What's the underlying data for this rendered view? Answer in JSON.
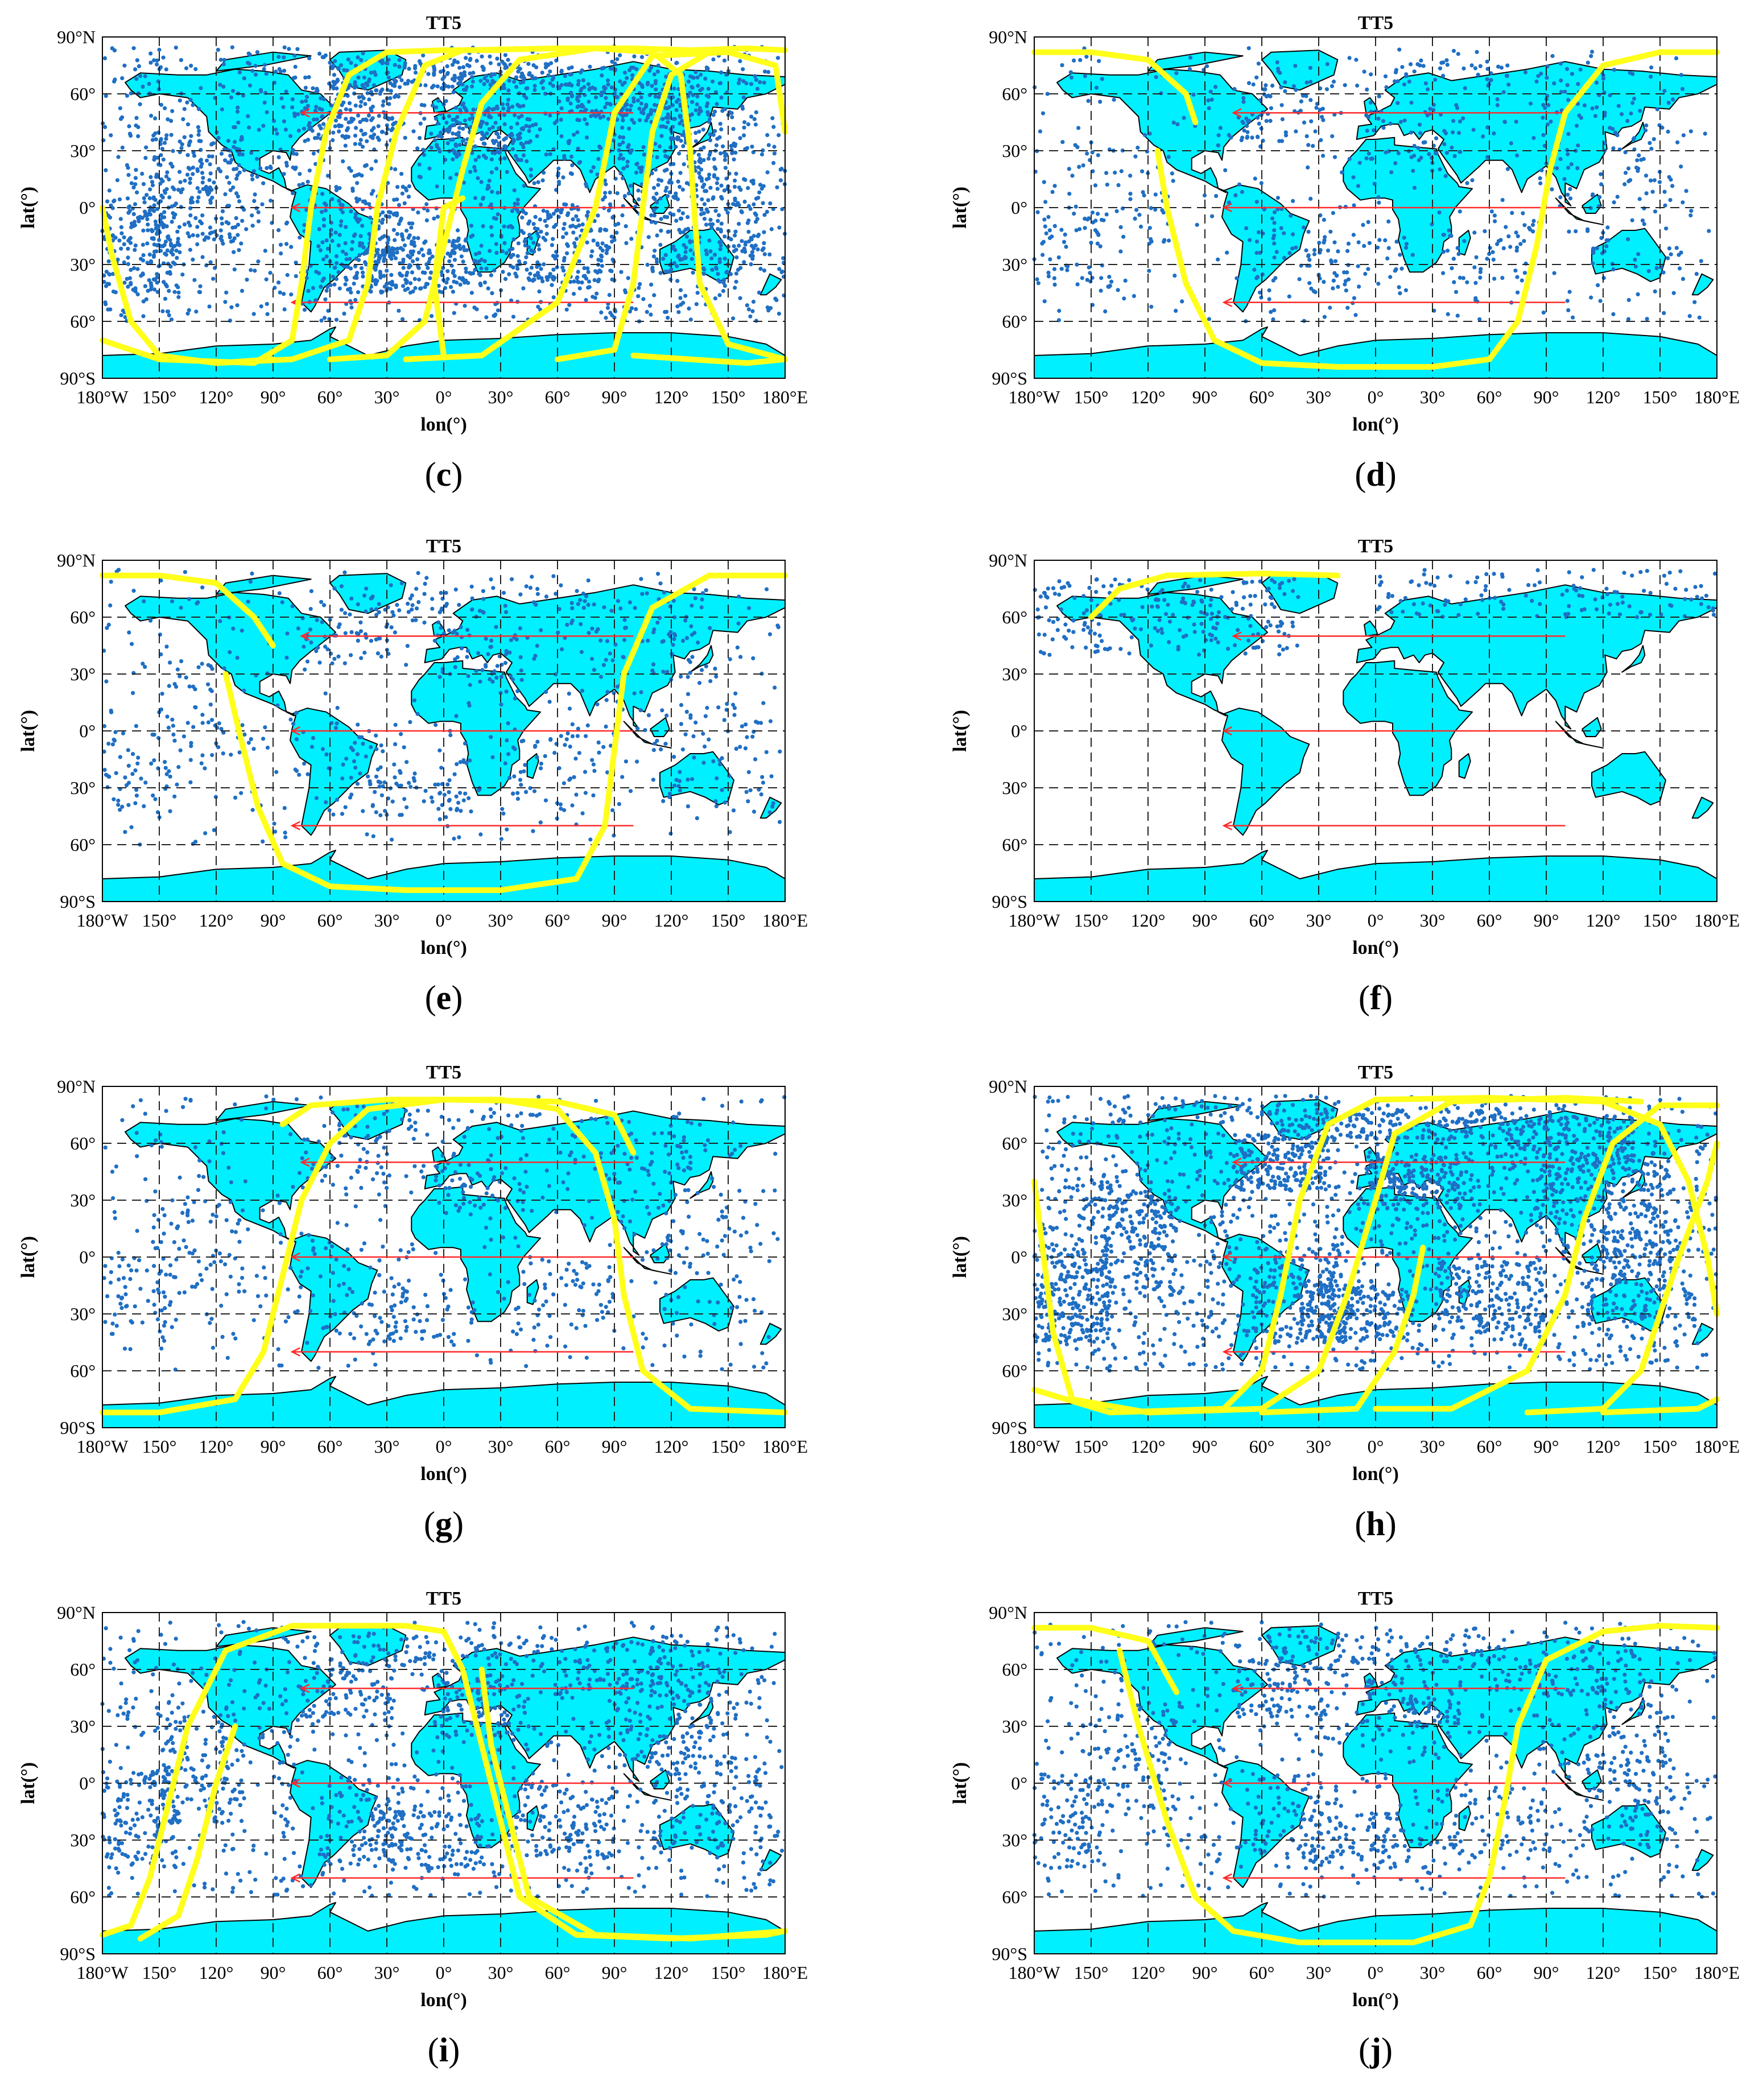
{
  "colors": {
    "land": "#00f0ff",
    "coast": "#000000",
    "points": "#1f6fc4",
    "track": "#ffff1a",
    "route": "#ff2a2a",
    "grid": "#222222"
  },
  "axis_text": {
    "title": "TT5",
    "xlabel": "lon(°)",
    "ylabel": "lat(°)",
    "xticks": [
      "180°W",
      "150°",
      "120°",
      "90°",
      "60°",
      "30°",
      "0°",
      "30°",
      "60°",
      "90°",
      "120°",
      "150°",
      "180°E"
    ],
    "yticks": [
      "90°N",
      "60°",
      "30°",
      "0°",
      "30°",
      "60°",
      "90°S"
    ]
  },
  "chart_data": [
    {
      "panel": "c",
      "type": "scatter",
      "title": "TT5",
      "xlabel": "lon(°)",
      "ylabel": "lat(°)",
      "xlim": [
        -180,
        180
      ],
      "ylim": [
        -90,
        90
      ],
      "grid": true,
      "density": "high"
    },
    {
      "panel": "d",
      "type": "scatter",
      "title": "TT5",
      "xlabel": "lon(°)",
      "ylabel": "lat(°)",
      "xlim": [
        -180,
        180
      ],
      "ylim": [
        -90,
        90
      ],
      "grid": true,
      "density": "low"
    },
    {
      "panel": "e",
      "type": "scatter",
      "title": "TT5",
      "xlabel": "lon(°)",
      "ylabel": "lat(°)",
      "xlim": [
        -180,
        180
      ],
      "ylim": [
        -90,
        90
      ],
      "grid": true,
      "density": "low"
    },
    {
      "panel": "f",
      "type": "scatter",
      "title": "TT5",
      "xlabel": "lon(°)",
      "ylabel": "lat(°)",
      "xlim": [
        -180,
        180
      ],
      "ylim": [
        -90,
        90
      ],
      "grid": true,
      "density": "very-low"
    },
    {
      "panel": "g",
      "type": "scatter",
      "title": "TT5",
      "xlabel": "lon(°)",
      "ylabel": "lat(°)",
      "xlim": [
        -180,
        180
      ],
      "ylim": [
        -90,
        90
      ],
      "grid": true,
      "density": "low"
    },
    {
      "panel": "h",
      "type": "scatter",
      "title": "TT5",
      "xlabel": "lon(°)",
      "ylabel": "lat(°)",
      "xlim": [
        -180,
        180
      ],
      "ylim": [
        -90,
        90
      ],
      "grid": true,
      "density": "high"
    },
    {
      "panel": "i",
      "type": "scatter",
      "title": "TT5",
      "xlabel": "lon(°)",
      "ylabel": "lat(°)",
      "xlim": [
        -180,
        180
      ],
      "ylim": [
        -90,
        90
      ],
      "grid": true,
      "density": "medium"
    },
    {
      "panel": "j",
      "type": "scatter",
      "title": "TT5",
      "xlabel": "lon(°)",
      "ylabel": "lat(°)",
      "xlim": [
        -180,
        180
      ],
      "ylim": [
        -90,
        90
      ],
      "grid": true,
      "density": "medium"
    }
  ]
}
